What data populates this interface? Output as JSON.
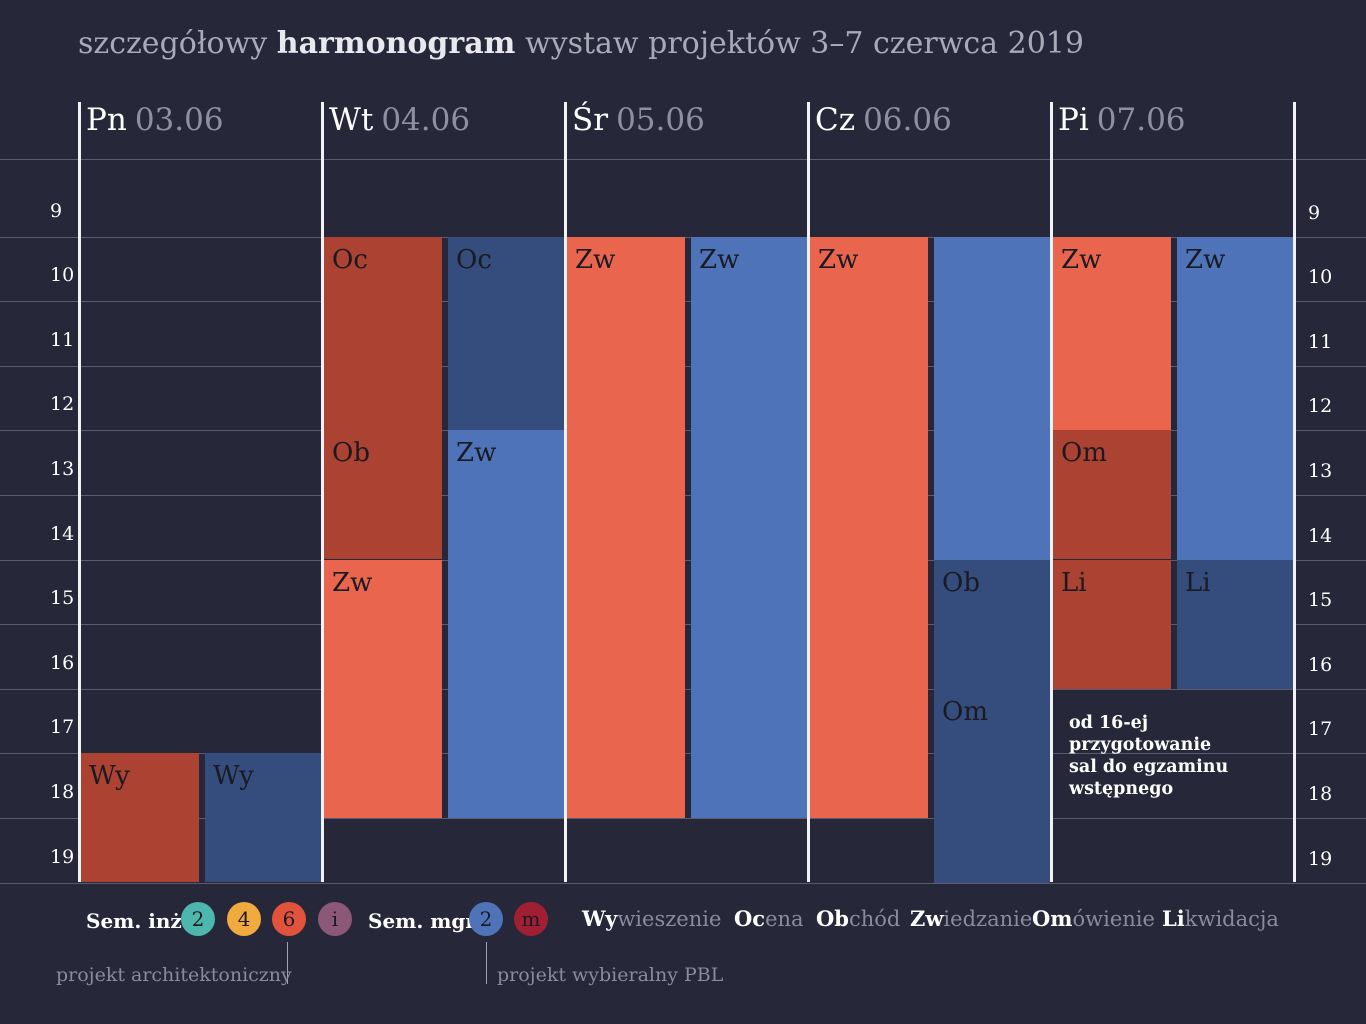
{
  "title": {
    "pre": "szczegółowy",
    "bold": "harmonogram",
    "post": "wystaw projektów 3–7 czerwca 2019"
  },
  "days": [
    {
      "name": "Pn",
      "date": "03.06"
    },
    {
      "name": "Wt",
      "date": "04.06"
    },
    {
      "name": "Śr",
      "date": "05.06"
    },
    {
      "name": "Cz",
      "date": "06.06"
    },
    {
      "name": "Pi",
      "date": "07.06"
    }
  ],
  "hours": [
    "9",
    "10",
    "11",
    "12",
    "13",
    "14",
    "15",
    "16",
    "17",
    "18",
    "19"
  ],
  "events": [
    {
      "day": 0,
      "track": 0,
      "start": 17.2,
      "end": 19.2,
      "label": "Wy",
      "color": "ar"
    },
    {
      "day": 0,
      "track": 1,
      "start": 17.2,
      "end": 19.2,
      "label": "Wy",
      "color": "nv"
    },
    {
      "day": 1,
      "track": 0,
      "start": 9.2,
      "end": 12.2,
      "label": "Oc",
      "color": "ar"
    },
    {
      "day": 1,
      "track": 0,
      "start": 12.2,
      "end": 14.2,
      "label": "Ob",
      "color": "ar"
    },
    {
      "day": 1,
      "track": 0,
      "start": 14.2,
      "end": 18.2,
      "label": "Zw",
      "color": "or"
    },
    {
      "day": 1,
      "track": 1,
      "start": 9.2,
      "end": 12.2,
      "label": "Oc",
      "color": "nv"
    },
    {
      "day": 1,
      "track": 1,
      "start": 12.2,
      "end": 18.2,
      "label": "Zw",
      "color": "bl"
    },
    {
      "day": 2,
      "track": 0,
      "start": 9.2,
      "end": 18.2,
      "label": "Zw",
      "color": "or"
    },
    {
      "day": 2,
      "track": 1,
      "start": 9.2,
      "end": 18.2,
      "label": "Zw",
      "color": "bl"
    },
    {
      "day": 3,
      "track": 0,
      "start": 9.2,
      "end": 18.2,
      "label": "Zw",
      "color": "or"
    },
    {
      "day": 3,
      "track": 1,
      "start": 9.2,
      "end": 14.2,
      "label": "",
      "color": "bl"
    },
    {
      "day": 3,
      "track": 1,
      "start": 14.2,
      "end": 16.2,
      "label": "Ob",
      "color": "nv"
    },
    {
      "day": 3,
      "track": 1,
      "start": 16.2,
      "end": 19.2,
      "label": "Om",
      "color": "nv"
    },
    {
      "day": 4,
      "track": 0,
      "start": 9.2,
      "end": 12.2,
      "label": "Zw",
      "color": "or"
    },
    {
      "day": 4,
      "track": 0,
      "start": 12.2,
      "end": 14.2,
      "label": "Om",
      "color": "ar"
    },
    {
      "day": 4,
      "track": 0,
      "start": 14.2,
      "end": 16.2,
      "label": "Li",
      "color": "ar"
    },
    {
      "day": 4,
      "track": 1,
      "start": 9.2,
      "end": 14.2,
      "label": "Zw",
      "color": "bl"
    },
    {
      "day": 4,
      "track": 1,
      "start": 14.2,
      "end": 16.2,
      "label": "Li",
      "color": "nv"
    }
  ],
  "note": [
    "od 16-ej",
    "przygotowanie",
    "sal do egzaminu",
    "wstępnego"
  ],
  "legend": {
    "inz_label": "Sem. inż:",
    "inz_dots": [
      {
        "text": "2",
        "color": "#4db6ad"
      },
      {
        "text": "4",
        "color": "#f1aa3d"
      },
      {
        "text": "6",
        "color": "#e2533c"
      },
      {
        "text": "i",
        "color": "#8c5878"
      }
    ],
    "mgr_label": "Sem. mgr:",
    "mgr_dots": [
      {
        "text": "2",
        "color": "#4e73b9"
      },
      {
        "text": "m",
        "color": "#a01f32"
      }
    ],
    "abbreviations": [
      {
        "bold": "Wy",
        "rest": "wieszenie"
      },
      {
        "bold": "Oc",
        "rest": "ena"
      },
      {
        "bold": "Ob",
        "rest": "chód"
      },
      {
        "bold": "Zw",
        "rest": "iedzanie"
      },
      {
        "bold": "Om",
        "rest": "ówienie"
      },
      {
        "bold": "Li",
        "rest": "kwidacja"
      }
    ],
    "sub_left": "projekt architektoniczny",
    "sub_right": "projekt wybieralny PBL"
  },
  "colors": {
    "ar": "#ac4231",
    "or": "#e9654d",
    "bl": "#4e73b9",
    "nv": "#344d7c"
  }
}
